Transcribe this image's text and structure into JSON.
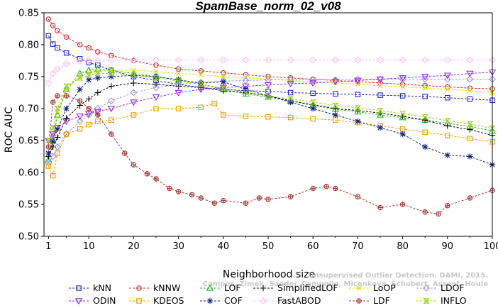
{
  "chart_data": {
    "type": "line",
    "title": "SpamBase_norm_02_v08",
    "xlabel": "Neighborhood size",
    "ylabel": "ROC AUC",
    "xlim": [
      0,
      100
    ],
    "ylim": [
      0.5,
      0.85
    ],
    "xticks": [
      1,
      10,
      20,
      30,
      40,
      50,
      60,
      70,
      80,
      90,
      100
    ],
    "yticks": [
      "0.50",
      "0.55",
      "0.60",
      "0.65",
      "0.70",
      "0.75",
      "0.80",
      "0.85"
    ],
    "grid": false,
    "legend_position": "bottom",
    "watermark": [
      "Unsupervised Outlier Detection. DAMI, 2015.",
      "Campos, Zimek, Sander, Campello, Micenkova, Schubert, Assent, Houle"
    ],
    "series": [
      {
        "name": "kNN",
        "color": "#2222dd",
        "marker": "square",
        "x": [
          1,
          2,
          3,
          5,
          8,
          10,
          12,
          15,
          20,
          25,
          30,
          35,
          40,
          45,
          50,
          55,
          60,
          65,
          70,
          75,
          80,
          85,
          90,
          95,
          100
        ],
        "y": [
          0.814,
          0.801,
          0.795,
          0.787,
          0.778,
          0.772,
          0.768,
          0.76,
          0.75,
          0.744,
          0.738,
          0.733,
          0.73,
          0.728,
          0.727,
          0.725,
          0.724,
          0.723,
          0.722,
          0.721,
          0.72,
          0.719,
          0.717,
          0.715,
          0.713
        ]
      },
      {
        "name": "kNNW",
        "color": "#dd2222",
        "marker": "circle",
        "x": [
          1,
          2,
          3,
          5,
          8,
          10,
          12,
          15,
          20,
          25,
          30,
          35,
          40,
          45,
          50,
          55,
          60,
          65,
          70,
          75,
          80,
          85,
          90,
          95,
          100
        ],
        "y": [
          0.84,
          0.83,
          0.822,
          0.812,
          0.8,
          0.795,
          0.789,
          0.783,
          0.775,
          0.768,
          0.762,
          0.759,
          0.756,
          0.753,
          0.75,
          0.748,
          0.746,
          0.744,
          0.742,
          0.74,
          0.738,
          0.736,
          0.734,
          0.732,
          0.731
        ]
      },
      {
        "name": "LOF",
        "color": "#22bb22",
        "marker": "triangle-up",
        "x": [
          1,
          2,
          3,
          5,
          8,
          10,
          12,
          15,
          20,
          25,
          30,
          35,
          40,
          45,
          50,
          55,
          60,
          65,
          70,
          75,
          80,
          85,
          90,
          95,
          100
        ],
        "y": [
          0.62,
          0.65,
          0.69,
          0.73,
          0.755,
          0.76,
          0.762,
          0.76,
          0.755,
          0.75,
          0.745,
          0.738,
          0.73,
          0.723,
          0.718,
          0.712,
          0.705,
          0.699,
          0.695,
          0.69,
          0.686,
          0.682,
          0.677,
          0.672,
          0.665
        ]
      },
      {
        "name": "SimplifiedLOF",
        "color": "#000000",
        "marker": "plus",
        "x": [
          1,
          2,
          3,
          5,
          8,
          10,
          12,
          15,
          20,
          25,
          30,
          35,
          40,
          45,
          50,
          55,
          60,
          65,
          70,
          75,
          80,
          85,
          90,
          95,
          100
        ],
        "y": [
          0.625,
          0.64,
          0.655,
          0.685,
          0.705,
          0.715,
          0.725,
          0.735,
          0.74,
          0.738,
          0.735,
          0.733,
          0.728,
          0.725,
          0.72,
          0.712,
          0.706,
          0.7,
          0.697,
          0.693,
          0.688,
          0.682,
          0.673,
          0.667,
          0.658
        ]
      },
      {
        "name": "LoOP",
        "color": "#dddd00",
        "marker": "x",
        "x": [
          1,
          2,
          3,
          5,
          8,
          10,
          12,
          15,
          20,
          25,
          30,
          35,
          40,
          45,
          50,
          55,
          60,
          65,
          70,
          75,
          80,
          85,
          90,
          95,
          100
        ],
        "y": [
          0.63,
          0.66,
          0.695,
          0.73,
          0.75,
          0.755,
          0.758,
          0.76,
          0.76,
          0.758,
          0.755,
          0.753,
          0.75,
          0.748,
          0.746,
          0.744,
          0.742,
          0.74,
          0.738,
          0.736,
          0.734,
          0.732,
          0.73,
          0.728,
          0.725
        ]
      },
      {
        "name": "LDOF",
        "color": "#9999dd",
        "marker": "diamond",
        "x": [
          1,
          2,
          3,
          5,
          8,
          10,
          12,
          15,
          20,
          25,
          30,
          35,
          40,
          45,
          50,
          55,
          60,
          65,
          70,
          75,
          80,
          85,
          90,
          95,
          100
        ],
        "y": [
          0.615,
          0.625,
          0.64,
          0.66,
          0.68,
          0.69,
          0.7,
          0.712,
          0.725,
          0.733,
          0.738,
          0.741,
          0.743,
          0.744,
          0.745,
          0.745,
          0.745,
          0.745,
          0.746,
          0.746,
          0.746,
          0.746,
          0.746,
          0.746,
          0.746
        ]
      },
      {
        "name": "ODIN",
        "color": "#9922ee",
        "marker": "triangle-down",
        "x": [
          1,
          2,
          3,
          5,
          8,
          10,
          12,
          15,
          20,
          25,
          30,
          35,
          40,
          45,
          50,
          55,
          60,
          65,
          70,
          75,
          80,
          85,
          90,
          95,
          100
        ],
        "y": [
          0.65,
          0.66,
          0.67,
          0.68,
          0.688,
          0.692,
          0.695,
          0.7,
          0.71,
          0.718,
          0.725,
          0.73,
          0.733,
          0.735,
          0.737,
          0.739,
          0.74,
          0.742,
          0.744,
          0.746,
          0.748,
          0.75,
          0.752,
          0.755,
          0.757
        ]
      },
      {
        "name": "KDEOS",
        "color": "#ee9900",
        "marker": "square",
        "x": [
          1,
          2,
          3,
          5,
          8,
          10,
          12,
          15,
          20,
          25,
          30,
          35,
          38,
          40,
          45,
          50,
          55,
          60,
          65,
          70,
          75,
          80,
          85,
          90,
          95,
          100
        ],
        "y": [
          0.61,
          0.595,
          0.63,
          0.66,
          0.668,
          0.675,
          0.68,
          0.682,
          0.69,
          0.7,
          0.7,
          0.702,
          0.708,
          0.69,
          0.688,
          0.687,
          0.686,
          0.684,
          0.682,
          0.678,
          0.673,
          0.668,
          0.663,
          0.658,
          0.653,
          0.648
        ]
      },
      {
        "name": "COF",
        "color": "#112288",
        "marker": "star",
        "x": [
          1,
          2,
          3,
          5,
          8,
          10,
          12,
          15,
          20,
          25,
          30,
          35,
          40,
          45,
          50,
          55,
          60,
          65,
          70,
          75,
          80,
          85,
          90,
          95,
          100
        ],
        "y": [
          0.63,
          0.648,
          0.668,
          0.7,
          0.73,
          0.745,
          0.748,
          0.75,
          0.752,
          0.75,
          0.745,
          0.74,
          0.742,
          0.73,
          0.72,
          0.71,
          0.7,
          0.69,
          0.68,
          0.67,
          0.66,
          0.64,
          0.627,
          0.625,
          0.612
        ]
      },
      {
        "name": "FastABOD",
        "color": "#ffbbee",
        "marker": "diamond",
        "x": [
          1,
          2,
          3,
          5,
          8,
          10,
          12,
          15,
          20,
          25,
          30,
          35,
          40,
          45,
          50,
          55,
          60,
          65,
          70,
          75,
          80,
          85,
          90,
          95,
          100
        ],
        "y": [
          0.74,
          0.755,
          0.762,
          0.77,
          0.774,
          0.775,
          0.775,
          0.776,
          0.776,
          0.776,
          0.776,
          0.776,
          0.776,
          0.776,
          0.776,
          0.776,
          0.776,
          0.776,
          0.776,
          0.776,
          0.776,
          0.776,
          0.776,
          0.776,
          0.776
        ]
      },
      {
        "name": "LDF",
        "color": "#aa3333",
        "marker": "circle-plus",
        "x": [
          1,
          2,
          3,
          5,
          8,
          10,
          12,
          15,
          18,
          20,
          23,
          25,
          28,
          30,
          33,
          35,
          38,
          40,
          45,
          48,
          50,
          55,
          60,
          63,
          65,
          70,
          75,
          80,
          85,
          88,
          90,
          95,
          100
        ],
        "y": [
          0.64,
          0.71,
          0.72,
          0.72,
          0.712,
          0.7,
          0.69,
          0.66,
          0.63,
          0.612,
          0.598,
          0.59,
          0.575,
          0.57,
          0.565,
          0.56,
          0.552,
          0.556,
          0.552,
          0.56,
          0.558,
          0.562,
          0.575,
          0.578,
          0.575,
          0.562,
          0.545,
          0.55,
          0.538,
          0.535,
          0.548,
          0.56,
          0.572
        ]
      },
      {
        "name": "INFLO",
        "color": "#99cc22",
        "marker": "hourglass",
        "x": [
          1,
          2,
          3,
          5,
          8,
          10,
          12,
          15,
          20,
          25,
          30,
          35,
          40,
          45,
          50,
          55,
          60,
          65,
          70,
          75,
          80,
          85,
          90,
          95,
          100
        ],
        "y": [
          0.65,
          0.67,
          0.7,
          0.735,
          0.748,
          0.752,
          0.755,
          0.755,
          0.752,
          0.748,
          0.743,
          0.738,
          0.732,
          0.726,
          0.72,
          0.715,
          0.71,
          0.705,
          0.701,
          0.697,
          0.692,
          0.687,
          0.681,
          0.676,
          0.669
        ]
      }
    ],
    "legend_order": [
      "kNN",
      "kNNW",
      "LOF",
      "SimplifiedLOF",
      "LoOP",
      "LDOF",
      "ODIN",
      "KDEOS",
      "COF",
      "FastABOD",
      "LDF",
      "INFLO"
    ]
  }
}
